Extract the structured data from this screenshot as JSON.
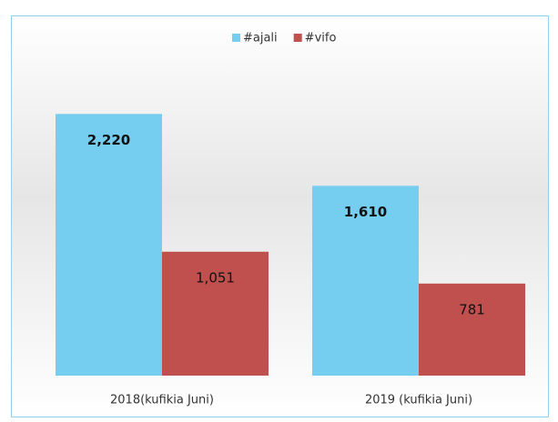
{
  "chart_data": {
    "type": "bar",
    "categories": [
      "2018(kufikia Juni)",
      "2019 (kufikia Juni)"
    ],
    "series": [
      {
        "name": "#ajali",
        "color": "#75cdf0",
        "values": [
          2220,
          1610
        ],
        "value_labels": [
          "2,220",
          "1,610"
        ]
      },
      {
        "name": "#vifo",
        "color": "#c0504d",
        "values": [
          1051,
          781
        ],
        "value_labels": [
          "1,051",
          "781"
        ]
      }
    ],
    "ylim": [
      0,
      2500
    ],
    "legend": "top"
  }
}
